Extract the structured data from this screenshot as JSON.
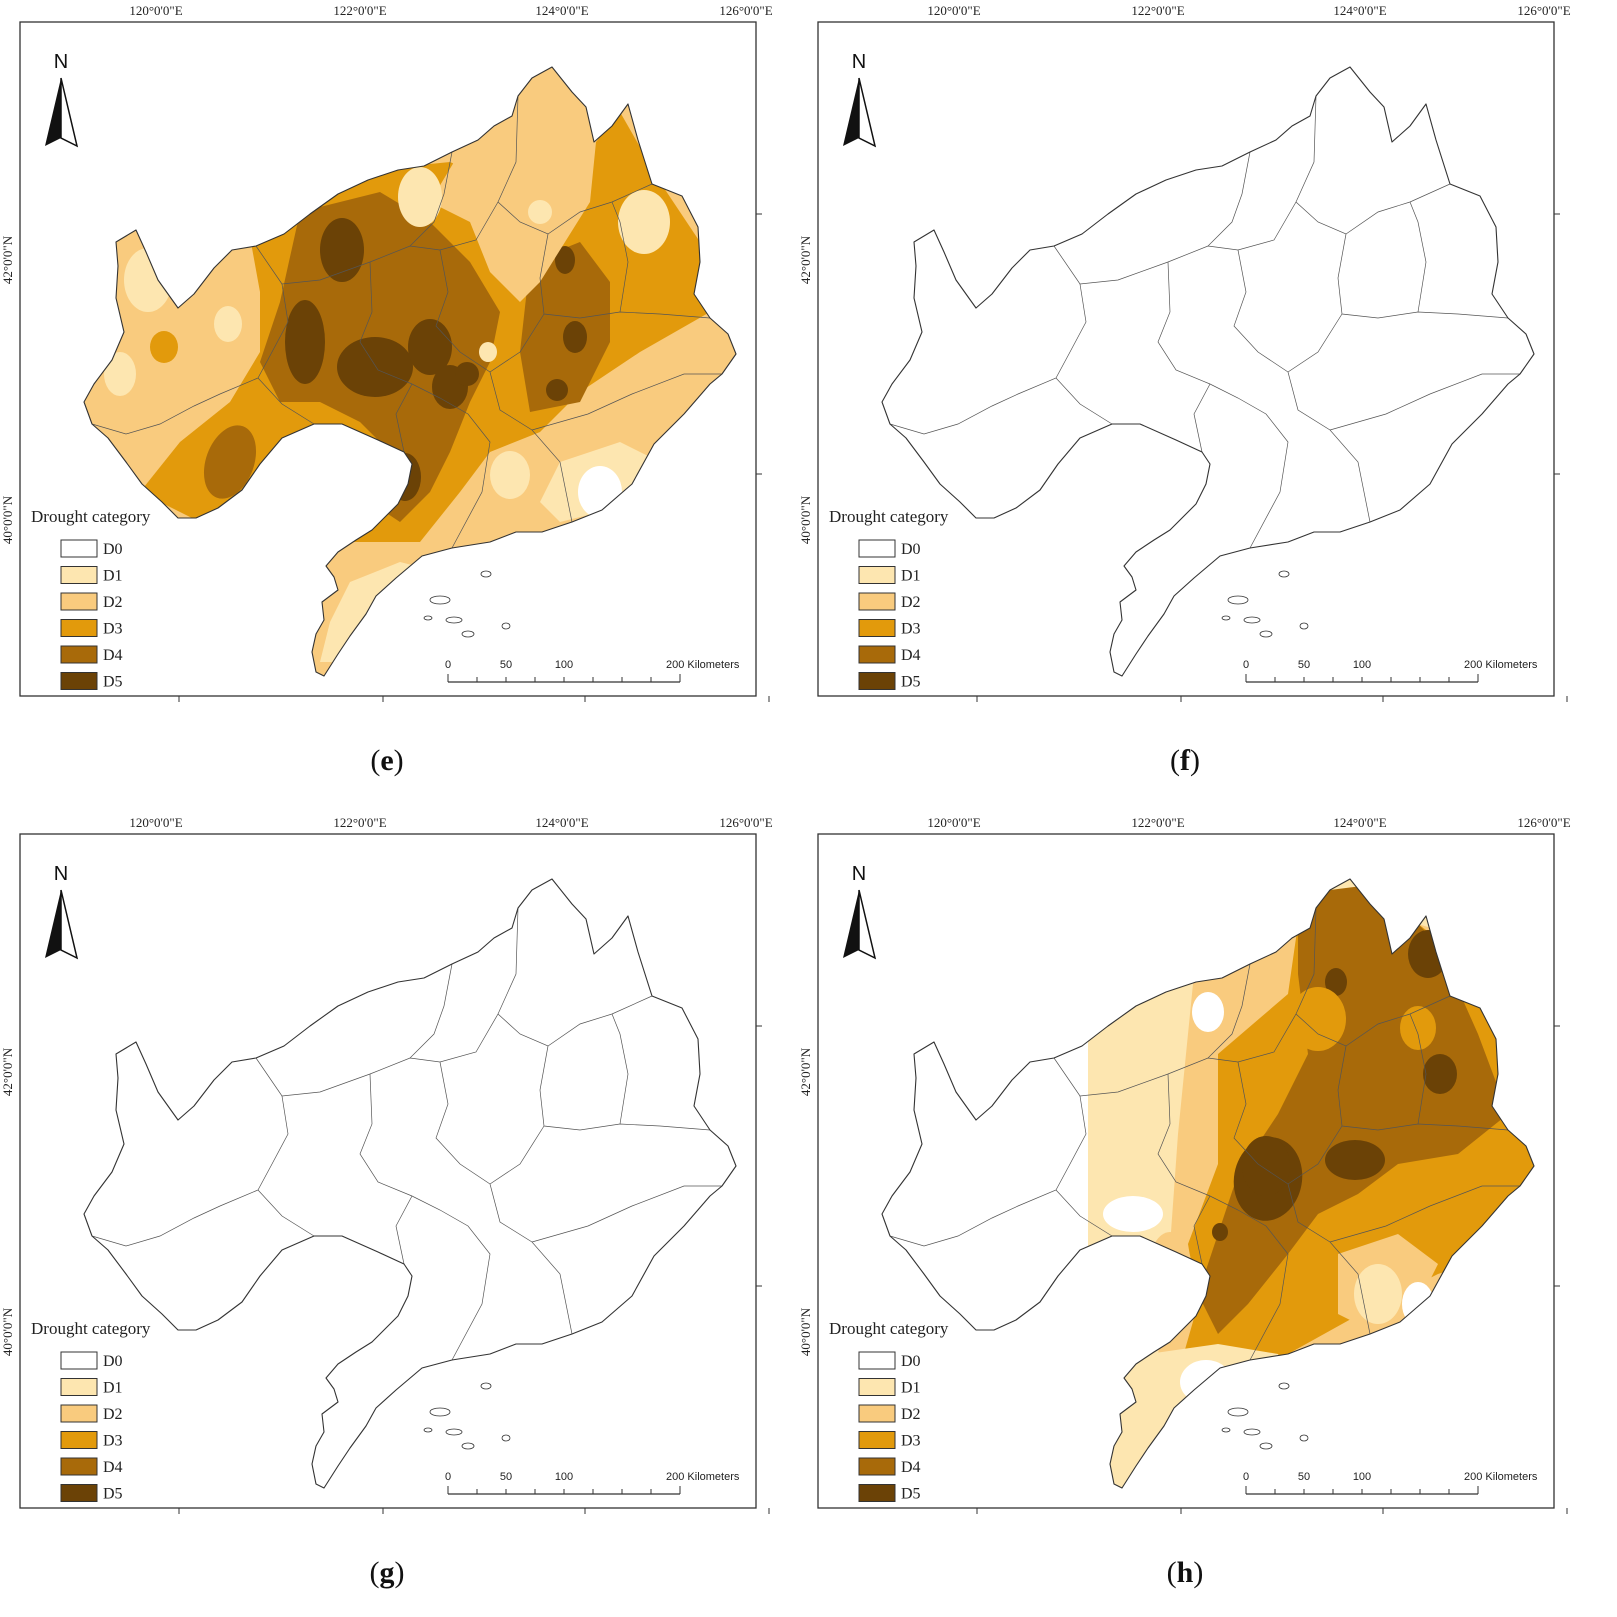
{
  "figure": {
    "longitude_labels": [
      "120°0'0\"E",
      "122°0'0\"E",
      "124°0'0\"E",
      "126°0'0\"E"
    ],
    "latitude_labels": [
      "42°0'0\"N",
      "40°0'0\"N"
    ],
    "north_label": "N",
    "legend": {
      "title": "Drought category",
      "categories": [
        {
          "label": "D0",
          "color": "#ffffff"
        },
        {
          "label": "D1",
          "color": "#fde6b0"
        },
        {
          "label": "D2",
          "color": "#f9cb7e"
        },
        {
          "label": "D3",
          "color": "#e29a0c"
        },
        {
          "label": "D4",
          "color": "#a86a0a"
        },
        {
          "label": "D5",
          "color": "#6b4206"
        }
      ]
    },
    "scale_bar": {
      "ticks": [
        "0",
        "50",
        "100",
        "200 Kilometers"
      ]
    }
  },
  "panels": [
    {
      "id": "e",
      "letter": "e",
      "dominant_category": "D3"
    },
    {
      "id": "f",
      "letter": "f",
      "dominant_category": "D0"
    },
    {
      "id": "g",
      "letter": "g",
      "dominant_category": "D0"
    },
    {
      "id": "h",
      "letter": "h",
      "dominant_category": "D3"
    }
  ]
}
